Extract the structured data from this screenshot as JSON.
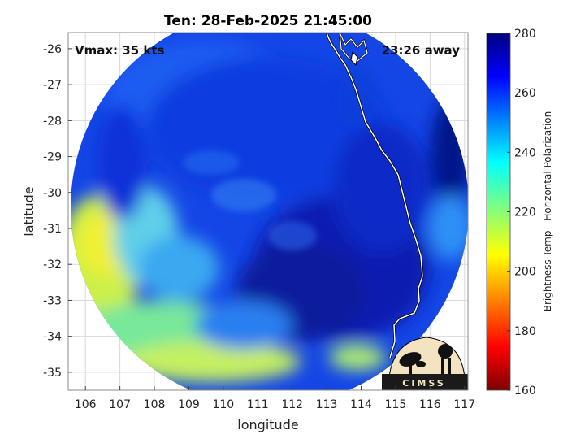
{
  "chart_data": {
    "type": "heatmap",
    "title": "Ten: 28-Feb-2025 21:45:00",
    "xlabel": "longitude",
    "ylabel": "latitude",
    "xlim": [
      105.5,
      117.1
    ],
    "ylim": [
      -35.5,
      -25.55
    ],
    "xticks": [
      106,
      107,
      108,
      109,
      110,
      111,
      112,
      113,
      114,
      115,
      116,
      117
    ],
    "yticks": [
      -26,
      -27,
      -28,
      -29,
      -30,
      -31,
      -32,
      -33,
      -34,
      -35
    ],
    "grid": true,
    "annotations": {
      "vmax": "Vmax: 35 kts",
      "away": "23:26 away"
    },
    "colorbar": {
      "label": "Brightness Temp - Horizontal Polarization",
      "range": [
        160,
        280
      ],
      "ticks": [
        280,
        260,
        240,
        220,
        200,
        180,
        160
      ],
      "colormap": [
        "#00007f",
        "#0000ff",
        "#00ffff",
        "#ffff00",
        "#ff0000",
        "#7f0000"
      ]
    },
    "field_summary": {
      "center_lon": 111.6,
      "center_lat": -31.6,
      "coldest_region": "south-east, near 113,-32 (about 265-275)",
      "warmest_region": "west, near 106.5,-31.5 (about 215-225)",
      "typical_value": 255
    },
    "logo": "CIMSS",
    "colors": {
      "coast": "#ffffff",
      "grid": "#d9d9d9",
      "frame": "#888888"
    }
  }
}
